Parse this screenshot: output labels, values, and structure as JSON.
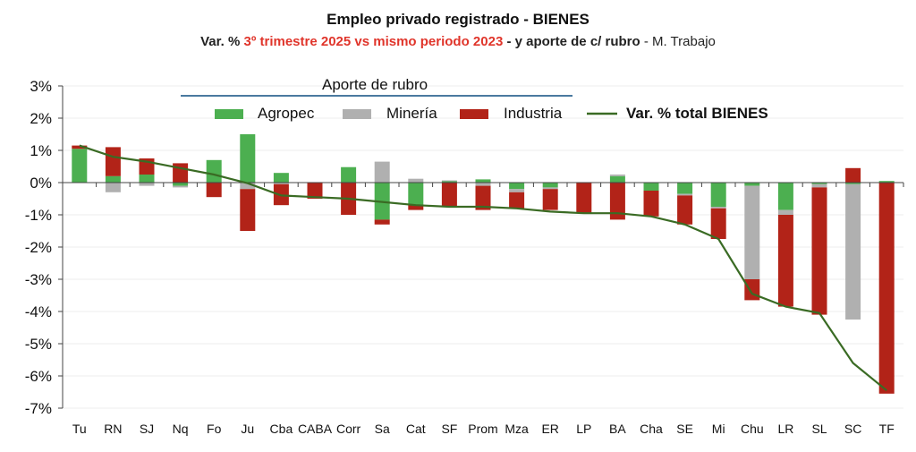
{
  "title": "Empleo privado registrado  - BIENES",
  "subtitle": {
    "part1": "Var. % ",
    "part2_highlight": "3º trimestre 2025 vs mismo periodo 2023",
    "part3": " - y aporte de c/ rubro",
    "part4": " - M. Trabajo"
  },
  "legend_group_title": "Aporte de rubro",
  "colors": {
    "Agropec": "#4caf50",
    "Minería": "#b0b0b0",
    "Industria": "#b22318",
    "total": "#3a6b24",
    "header_line": "#4a7aa0"
  },
  "chart_data": {
    "type": "bar",
    "stacked": true,
    "categories": [
      "Tu",
      "RN",
      "SJ",
      "Nq",
      "Fo",
      "Ju",
      "Cba",
      "CABA",
      "Corr",
      "Sa",
      "Cat",
      "SF",
      "Prom",
      "Mza",
      "ER",
      "LP",
      "BA",
      "Cha",
      "SE",
      "Mi",
      "Chu",
      "LR",
      "SL",
      "SC",
      "TF"
    ],
    "series": [
      {
        "name": "Agropec",
        "values": [
          1.05,
          0.2,
          0.25,
          -0.1,
          0.7,
          1.5,
          0.3,
          0,
          0.48,
          -1.15,
          -0.7,
          0.05,
          0.1,
          -0.2,
          -0.15,
          0,
          0.2,
          -0.25,
          -0.35,
          -0.75,
          -0.1,
          -0.85,
          -0.05,
          -0.05,
          0.05
        ]
      },
      {
        "name": "Minería",
        "values": [
          0,
          -0.3,
          -0.1,
          -0.05,
          0,
          -0.2,
          -0.05,
          0,
          0,
          0.65,
          0.12,
          0.02,
          -0.1,
          -0.1,
          -0.05,
          0,
          0.05,
          0,
          -0.05,
          -0.05,
          -2.9,
          -0.15,
          -0.1,
          -4.2,
          0
        ]
      },
      {
        "name": "Industria",
        "values": [
          0.1,
          0.9,
          0.5,
          0.6,
          -0.45,
          -1.3,
          -0.65,
          -0.5,
          -1.0,
          -0.15,
          -0.15,
          -0.75,
          -0.75,
          -0.5,
          -0.65,
          -0.95,
          -1.15,
          -0.8,
          -0.9,
          -0.95,
          -0.65,
          -2.85,
          -3.95,
          0.45,
          -6.55
        ]
      },
      {
        "name": "Var. % total BIENES",
        "type": "line",
        "values": [
          1.15,
          0.8,
          0.65,
          0.45,
          0.25,
          -0.02,
          -0.4,
          -0.45,
          -0.5,
          -0.6,
          -0.7,
          -0.75,
          -0.75,
          -0.8,
          -0.9,
          -0.95,
          -0.95,
          -1.05,
          -1.3,
          -1.75,
          -3.45,
          -3.85,
          -4.05,
          -5.6,
          -6.45
        ]
      }
    ],
    "yticks": [
      "3%",
      "2%",
      "1%",
      "0%",
      "-1%",
      "-2%",
      "-3%",
      "-4%",
      "-5%",
      "-6%",
      "-7%"
    ],
    "ylim": [
      -7,
      3
    ],
    "grid": true,
    "legend": "top"
  }
}
